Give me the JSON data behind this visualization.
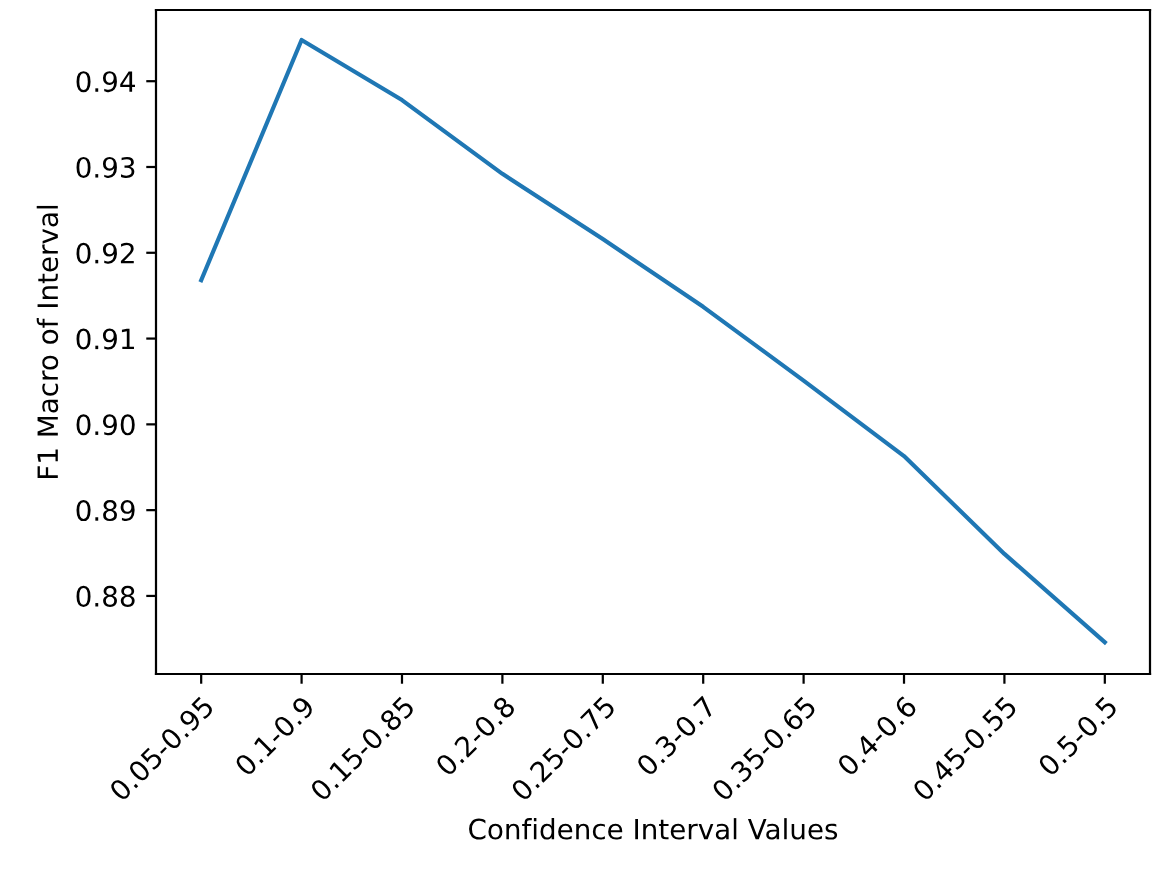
{
  "chart_data": {
    "type": "line",
    "xlabel": "Confidence Interval Values",
    "ylabel": "F1 Macro of Interval",
    "categories": [
      "0.05-0.95",
      "0.1-0.9",
      "0.15-0.85",
      "0.2-0.8",
      "0.25-0.75",
      "0.3-0.7",
      "0.35-0.65",
      "0.4-0.6",
      "0.45-0.55",
      "0.5-0.5"
    ],
    "series": [
      {
        "color": "#1f77b4",
        "values": [
          0.9168,
          0.9448,
          0.9378,
          0.9292,
          0.9216,
          0.9137,
          0.9051,
          0.8963,
          0.8849,
          0.8746
        ]
      }
    ],
    "ylim": [
      0.8709,
      0.9483
    ],
    "yticks": [
      {
        "value": 0.88,
        "label": "0.88"
      },
      {
        "value": 0.89,
        "label": "0.89"
      },
      {
        "value": 0.9,
        "label": "0.90"
      },
      {
        "value": 0.91,
        "label": "0.91"
      },
      {
        "value": 0.92,
        "label": "0.92"
      },
      {
        "value": 0.93,
        "label": "0.93"
      },
      {
        "value": 0.94,
        "label": "0.94"
      }
    ],
    "grid": false,
    "legend": false,
    "marker": "none",
    "line_style": "solid"
  }
}
